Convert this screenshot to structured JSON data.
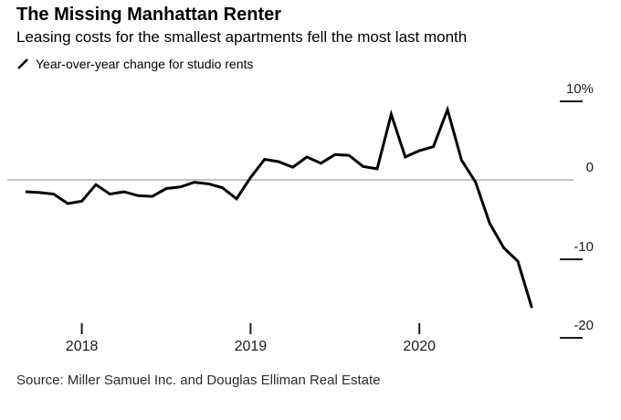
{
  "header": {
    "title": "The Missing Manhattan Renter",
    "subtitle": "Leasing costs for the smallest apartments fell the most last month"
  },
  "legend": {
    "label": "Year-over-year change for studio rents"
  },
  "source": "Source: Miller Samuel Inc. and Douglas Elliman Real Estate",
  "colors": {
    "line": "#000000",
    "zero_line": "#8a8a8a",
    "tick": "#1a1a1a",
    "text": "#000000"
  },
  "chart_data": {
    "type": "line",
    "title": "The Missing Manhattan Renter",
    "subtitle": "Leasing costs for the smallest apartments fell the most last month",
    "series_name": "Year-over-year change for studio rents",
    "unit": "percent",
    "x": [
      "2017-09",
      "2017-10",
      "2017-11",
      "2017-12",
      "2018-01",
      "2018-02",
      "2018-03",
      "2018-04",
      "2018-05",
      "2018-06",
      "2018-07",
      "2018-08",
      "2018-09",
      "2018-10",
      "2018-11",
      "2018-12",
      "2019-01",
      "2019-02",
      "2019-03",
      "2019-04",
      "2019-05",
      "2019-06",
      "2019-07",
      "2019-08",
      "2019-09",
      "2019-10",
      "2019-11",
      "2019-12",
      "2020-01",
      "2020-02",
      "2020-03",
      "2020-04",
      "2020-05",
      "2020-06",
      "2020-07",
      "2020-08",
      "2020-09"
    ],
    "values": [
      -1.5,
      -1.6,
      -1.8,
      -3.0,
      -2.7,
      -0.6,
      -1.8,
      -1.5,
      -2.0,
      -2.1,
      -1.1,
      -0.9,
      -0.3,
      -0.5,
      -1.0,
      -2.4,
      0.3,
      2.6,
      2.3,
      1.6,
      2.9,
      2.1,
      3.2,
      3.1,
      1.7,
      1.4,
      8.3,
      2.9,
      3.7,
      4.2,
      8.9,
      2.5,
      -0.3,
      -5.5,
      -8.6,
      -10.3,
      -16.2
    ],
    "y_ticks": [
      {
        "label": "10%",
        "value": 10
      },
      {
        "label": "0",
        "value": 0
      },
      {
        "label": "-10",
        "value": -10
      },
      {
        "label": "-20",
        "value": -20
      }
    ],
    "x_ticks": [
      {
        "label": "2018",
        "month": "2018-01"
      },
      {
        "label": "2019",
        "month": "2019-01"
      },
      {
        "label": "2020",
        "month": "2020-01"
      }
    ],
    "ylim": [
      -22,
      12
    ],
    "grid": false,
    "zero_line": true,
    "legend_position": "top-left",
    "line_color": "#000000"
  }
}
